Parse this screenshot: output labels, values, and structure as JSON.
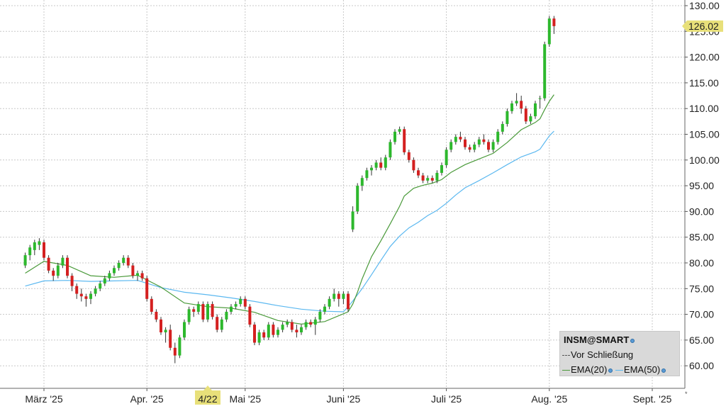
{
  "chart_data": {
    "type": "candlestick",
    "title": "",
    "xlabel": "",
    "ylabel": "",
    "ylim": [
      55,
      130
    ],
    "y_ticks": [
      "130.00",
      "125.00",
      "120.00",
      "115.00",
      "110.00",
      "105.00",
      "100.00",
      "95.00",
      "90.00",
      "85.00",
      "80.00",
      "75.00",
      "70.00",
      "65.00",
      "60.00"
    ],
    "x_ticks": [
      "März '25",
      "Apr. '25",
      "Mai '25",
      "Juni '25",
      "Juli '25",
      "Aug. '25",
      "Sept. '25"
    ],
    "x_tick_positions": [
      0,
      22,
      43,
      64,
      86,
      108,
      130
    ],
    "highlight_x_label": "4/22",
    "highlight_x_index": 35,
    "last_price_label": "126.02",
    "last_price": 126.02,
    "grid": true,
    "legend_position": "bottom-right",
    "colors": {
      "up": "#2db82d",
      "down": "#d42020",
      "ema20": "#4a9a3a",
      "ema50": "#5bb8f0",
      "highlight": "#e8e07a"
    },
    "legend": {
      "title": "INSM@SMART",
      "line2": "Vor Schließung",
      "ema20_label": "EMA(20)",
      "ema50_label": "EMA(50)"
    },
    "candles": [
      [
        -4,
        79.5,
        82,
        79,
        81.5
      ],
      [
        -3,
        81.5,
        83.5,
        80.5,
        83
      ],
      [
        -2,
        82.5,
        84.5,
        81.5,
        84
      ],
      [
        -1,
        83.5,
        84.8,
        82.5,
        84.2
      ],
      [
        0,
        84,
        84.5,
        80.5,
        81
      ],
      [
        1,
        81,
        81.5,
        78,
        78.5
      ],
      [
        2,
        78.5,
        79,
        76.5,
        77.5
      ],
      [
        3,
        77.5,
        80,
        77,
        79.5
      ],
      [
        4,
        79.5,
        81.5,
        79,
        81
      ],
      [
        5,
        81,
        81.5,
        77,
        77.5
      ],
      [
        6,
        77.5,
        78,
        74.5,
        75.5
      ],
      [
        7,
        75.5,
        76,
        73,
        74
      ],
      [
        8,
        74,
        75,
        72.5,
        73.5
      ],
      [
        9,
        73.5,
        74,
        71.5,
        73
      ],
      [
        10,
        73,
        74.5,
        72,
        74
      ],
      [
        11,
        74,
        75.5,
        73.5,
        75
      ],
      [
        12,
        75,
        76.5,
        74.5,
        76
      ],
      [
        13,
        76,
        77.5,
        75.5,
        77
      ],
      [
        14,
        77,
        78.5,
        76.5,
        78
      ],
      [
        15,
        78,
        79.5,
        77.5,
        79
      ],
      [
        16,
        79,
        80.5,
        78.5,
        80
      ],
      [
        17,
        80,
        81.5,
        79.5,
        81
      ],
      [
        18,
        81,
        81.5,
        79,
        79.5
      ],
      [
        19,
        79.5,
        80,
        77,
        77.5
      ],
      [
        20,
        77.5,
        78.5,
        76.5,
        78
      ],
      [
        21,
        78,
        78.5,
        76.5,
        77
      ],
      [
        22,
        77,
        77.5,
        72.5,
        73
      ],
      [
        23,
        73,
        73.5,
        70,
        70.5
      ],
      [
        24,
        70.5,
        71,
        68.5,
        69
      ],
      [
        25,
        69,
        69.5,
        66,
        66.5
      ],
      [
        26,
        66.5,
        67.5,
        64.5,
        67
      ],
      [
        27,
        67,
        68,
        63,
        63.5
      ],
      [
        28,
        63.5,
        64.5,
        60.5,
        62
      ],
      [
        29,
        62,
        66,
        61.5,
        65.5
      ],
      [
        30,
        65.5,
        69,
        65,
        68.5
      ],
      [
        31,
        68.5,
        71.5,
        68,
        71
      ],
      [
        32,
        71,
        71.5,
        69.5,
        70.5
      ],
      [
        33,
        70.5,
        72.5,
        70,
        72
      ],
      [
        34,
        72,
        72.5,
        68.5,
        69
      ],
      [
        35,
        69,
        72.5,
        68.5,
        72
      ],
      [
        36,
        72,
        72.5,
        69,
        69.5
      ],
      [
        37,
        69.5,
        70,
        66.5,
        67
      ],
      [
        38,
        67,
        69.5,
        66.5,
        69
      ],
      [
        39,
        69,
        71,
        68.5,
        70.5
      ],
      [
        40,
        70.5,
        72,
        70,
        71.5
      ],
      [
        41,
        71.5,
        72.5,
        71,
        72
      ],
      [
        42,
        72,
        73.5,
        71.5,
        73
      ],
      [
        43,
        73,
        73.5,
        71,
        71.5
      ],
      [
        44,
        71.5,
        72,
        67.5,
        68
      ],
      [
        45,
        68,
        68.5,
        64,
        64.5
      ],
      [
        46,
        64.5,
        67,
        64,
        66.5
      ],
      [
        47,
        66.5,
        67,
        65,
        65.5
      ],
      [
        48,
        65.5,
        68.5,
        65,
        68
      ],
      [
        49,
        68,
        68.5,
        65.5,
        66
      ],
      [
        50,
        66,
        67.5,
        65.5,
        67
      ],
      [
        51,
        67,
        68.5,
        66.5,
        68
      ],
      [
        52,
        68,
        69,
        67.5,
        68.5
      ],
      [
        53,
        68.5,
        69,
        66.5,
        67
      ],
      [
        54,
        67,
        68,
        65.5,
        66.5
      ],
      [
        55,
        66.5,
        68,
        66,
        67.5
      ],
      [
        56,
        67.5,
        69,
        67,
        68.5
      ],
      [
        57,
        68.5,
        69,
        67.5,
        68
      ],
      [
        58,
        68,
        69.5,
        66,
        69
      ],
      [
        59,
        69,
        71,
        68.5,
        70.5
      ],
      [
        60,
        70.5,
        72,
        70,
        71.5
      ],
      [
        61,
        71.5,
        73.5,
        71,
        73
      ],
      [
        62,
        73,
        75,
        72.5,
        74
      ],
      [
        63,
        74,
        74.5,
        71.5,
        73
      ],
      [
        64,
        73,
        74.5,
        72,
        74
      ],
      [
        65,
        74,
        74.5,
        70.5,
        71
      ],
      [
        66,
        86.5,
        91,
        86,
        90
      ],
      [
        67,
        90,
        95.5,
        89.5,
        95
      ],
      [
        68,
        95,
        97,
        94,
        96.5
      ],
      [
        69,
        96.5,
        98.5,
        96,
        98
      ],
      [
        70,
        98,
        99,
        97,
        98.5
      ],
      [
        71,
        98.5,
        100,
        98,
        99.5
      ],
      [
        72,
        99.5,
        100.5,
        98,
        98.5
      ],
      [
        73,
        98.5,
        101,
        98,
        100.5
      ],
      [
        74,
        100.5,
        104,
        100,
        103.5
      ],
      [
        75,
        103.5,
        106,
        103,
        105.5
      ],
      [
        76,
        105.5,
        106.5,
        105,
        106
      ],
      [
        77,
        106,
        106.5,
        101,
        101.5
      ],
      [
        78,
        101.5,
        102,
        99.5,
        100
      ],
      [
        79,
        100,
        100.5,
        97.5,
        98
      ],
      [
        80,
        98,
        98.5,
        96.5,
        97
      ],
      [
        81,
        97,
        97.5,
        95.5,
        96
      ],
      [
        82,
        96,
        97,
        95.5,
        96.5
      ],
      [
        83,
        96.5,
        97,
        95.5,
        96
      ],
      [
        84,
        96,
        98,
        95.5,
        97.5
      ],
      [
        85,
        97.5,
        99.5,
        97,
        99
      ],
      [
        86,
        99,
        102.5,
        98.5,
        102
      ],
      [
        87,
        102,
        104,
        101.5,
        103.5
      ],
      [
        88,
        103.5,
        105,
        103,
        104.5
      ],
      [
        89,
        104.5,
        105.5,
        103.5,
        104
      ],
      [
        90,
        104,
        104.5,
        102,
        102.5
      ],
      [
        91,
        102.5,
        103,
        101.5,
        102
      ],
      [
        92,
        102,
        103.5,
        101.5,
        103
      ],
      [
        93,
        103,
        104.5,
        102.5,
        104
      ],
      [
        94,
        104,
        105,
        103,
        103.5
      ],
      [
        95,
        103.5,
        104,
        101.5,
        102
      ],
      [
        96,
        102,
        104,
        101.5,
        103.5
      ],
      [
        97,
        103.5,
        106,
        103,
        105.5
      ],
      [
        98,
        105.5,
        107.5,
        105,
        107
      ],
      [
        99,
        107,
        110,
        106.5,
        109.5
      ],
      [
        100,
        109.5,
        111.5,
        109,
        111
      ],
      [
        101,
        111,
        113,
        110.5,
        111.5
      ],
      [
        102,
        111.5,
        112.5,
        109,
        110
      ],
      [
        103,
        110,
        110.5,
        107,
        107.5
      ],
      [
        104,
        107.5,
        109,
        107,
        108.5
      ],
      [
        105,
        108.5,
        111.5,
        108,
        111
      ],
      [
        106,
        112,
        112.5,
        110,
        112
      ],
      [
        107,
        112,
        123,
        111.5,
        122.5
      ],
      [
        108,
        122.5,
        128,
        122,
        127.5
      ],
      [
        109,
        127.5,
        128,
        124.5,
        126.02
      ]
    ],
    "ema20": [
      [
        -4,
        78
      ],
      [
        0,
        80.3
      ],
      [
        5,
        79.5
      ],
      [
        10,
        77.5
      ],
      [
        15,
        77.2
      ],
      [
        20,
        77.6
      ],
      [
        25,
        75.3
      ],
      [
        30,
        72.2
      ],
      [
        35,
        71.5
      ],
      [
        40,
        71.2
      ],
      [
        45,
        70.4
      ],
      [
        50,
        68.8
      ],
      [
        55,
        68.1
      ],
      [
        60,
        68.6
      ],
      [
        65,
        70.5
      ],
      [
        66,
        72
      ],
      [
        67,
        74.3
      ],
      [
        68,
        76.9
      ],
      [
        70,
        81.2
      ],
      [
        72,
        84.3
      ],
      [
        74,
        87.6
      ],
      [
        76,
        91
      ],
      [
        77,
        93
      ],
      [
        79,
        94.5
      ],
      [
        81,
        95.1
      ],
      [
        83,
        95.5
      ],
      [
        85,
        96.2
      ],
      [
        87,
        97.6
      ],
      [
        90,
        99.1
      ],
      [
        93,
        100.2
      ],
      [
        96,
        101.3
      ],
      [
        99,
        103.4
      ],
      [
        102,
        105.9
      ],
      [
        105,
        107.3
      ],
      [
        106,
        108
      ],
      [
        107,
        109.8
      ],
      [
        108,
        111.4
      ],
      [
        109,
        112.7
      ]
    ],
    "ema50": [
      [
        -4,
        75.5
      ],
      [
        0,
        76.5
      ],
      [
        5,
        76.6
      ],
      [
        10,
        76.4
      ],
      [
        15,
        76.5
      ],
      [
        20,
        76.6
      ],
      [
        25,
        75.2
      ],
      [
        30,
        74.3
      ],
      [
        35,
        73.8
      ],
      [
        40,
        73.2
      ],
      [
        45,
        72.5
      ],
      [
        50,
        71.7
      ],
      [
        55,
        71
      ],
      [
        60,
        70.6
      ],
      [
        64,
        70.5
      ],
      [
        65,
        71.5
      ],
      [
        66,
        72.6
      ],
      [
        68,
        75
      ],
      [
        70,
        77.7
      ],
      [
        72,
        80.5
      ],
      [
        74,
        83.2
      ],
      [
        76,
        85.2
      ],
      [
        78,
        86.8
      ],
      [
        80,
        87.9
      ],
      [
        82,
        89.2
      ],
      [
        84,
        90.2
      ],
      [
        86,
        91.6
      ],
      [
        88,
        93.2
      ],
      [
        90,
        94.6
      ],
      [
        93,
        96
      ],
      [
        96,
        97.5
      ],
      [
        99,
        99.1
      ],
      [
        102,
        100.6
      ],
      [
        105,
        101.6
      ],
      [
        106,
        102.1
      ],
      [
        107,
        103.4
      ],
      [
        108,
        104.7
      ],
      [
        109,
        105.6
      ]
    ]
  }
}
